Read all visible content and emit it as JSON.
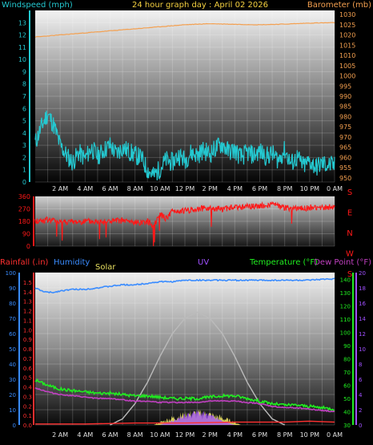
{
  "title": "24 hour graph day : April 02 2026",
  "colors": {
    "wind": "#24c8d0",
    "barometer": "#f4a050",
    "direction": "#ff1818",
    "rain": "#ff3030",
    "humidity": "#3a8cff",
    "solar": "#e8e060",
    "uv": "#a050ff",
    "temperature": "#20ee20",
    "dewpoint": "#c040c0",
    "solar_curve": "#bbbbbb"
  },
  "time_labels": [
    "2 AM",
    "4 AM",
    "6 AM",
    "8 AM",
    "10 AM",
    "12 PM",
    "2 PM",
    "4 PM",
    "6 PM",
    "8 PM",
    "10 PM",
    "0 AM"
  ],
  "chart_data": [
    {
      "type": "line",
      "x_range_hours": [
        0,
        24
      ],
      "left_axis": {
        "label": "Windspeed (mph)",
        "ticks": [
          0,
          1,
          2,
          3,
          4,
          5,
          6,
          7,
          8,
          9,
          10,
          11,
          12,
          13
        ],
        "range": [
          0,
          14
        ]
      },
      "right_axis": {
        "label": "Barometer (mb)",
        "ticks": [
          950,
          955,
          960,
          965,
          970,
          975,
          980,
          985,
          990,
          995,
          1000,
          1005,
          1010,
          1015,
          1020,
          1025,
          1030
        ],
        "range": [
          948,
          1032
        ]
      },
      "series": [
        {
          "name": "Windspeed (mph)",
          "axis": "left",
          "x": [
            0,
            0.5,
            1,
            1.5,
            2,
            2.5,
            3,
            3.5,
            4,
            4.5,
            5,
            5.5,
            6,
            6.5,
            7,
            7.5,
            8,
            8.5,
            9,
            9.5,
            10,
            10.5,
            11,
            11.5,
            12,
            12.5,
            13,
            13.5,
            14,
            14.5,
            15,
            15.5,
            16,
            16.5,
            17,
            17.5,
            18,
            18.5,
            19,
            19.5,
            20,
            20.5,
            21,
            21.5,
            22,
            22.5,
            23,
            23.5,
            24
          ],
          "y": [
            3.2,
            4.5,
            5.6,
            4.6,
            3.0,
            2.2,
            1.6,
            2.4,
            1.9,
            2.8,
            2.1,
            2.6,
            3.0,
            2.3,
            2.8,
            2.5,
            2.2,
            2.0,
            1.0,
            0.5,
            1.1,
            1.8,
            1.6,
            2.2,
            1.8,
            2.4,
            2.2,
            2.6,
            2.3,
            2.8,
            3.1,
            2.5,
            2.6,
            2.0,
            2.4,
            2.2,
            2.5,
            2.1,
            2.3,
            1.8,
            2.6,
            1.5,
            2.0,
            1.3,
            1.7,
            1.2,
            1.5,
            1.4,
            1.3
          ]
        },
        {
          "name": "Barometer (mb)",
          "axis": "right",
          "x": [
            0,
            2,
            4,
            6,
            8,
            10,
            12,
            14,
            16,
            18,
            20,
            22,
            24
          ],
          "y": [
            1019,
            1020,
            1021,
            1022,
            1023,
            1024,
            1025,
            1025.5,
            1025.2,
            1025,
            1025.3,
            1025.8,
            1026
          ]
        }
      ]
    },
    {
      "type": "scatter",
      "x_range_hours": [
        0,
        24
      ],
      "left_axis": {
        "ticks": [
          0,
          90,
          180,
          270,
          360
        ],
        "range": [
          0,
          360
        ]
      },
      "right_labels": [
        "S",
        "E",
        "N",
        "W",
        "S"
      ],
      "series": [
        {
          "name": "Wind direction",
          "x": [
            0,
            1,
            2,
            3,
            4,
            5,
            6,
            7,
            8,
            9,
            9.5,
            10,
            10.5,
            11,
            12,
            13,
            14,
            15,
            16,
            17,
            18,
            19,
            20,
            21,
            22,
            23,
            24
          ],
          "y": [
            180,
            190,
            180,
            175,
            180,
            175,
            180,
            185,
            170,
            180,
            150,
            230,
            200,
            250,
            255,
            270,
            275,
            270,
            280,
            285,
            290,
            300,
            280,
            270,
            280,
            275,
            285
          ]
        }
      ]
    },
    {
      "type": "line",
      "x_range_hours": [
        0,
        24
      ],
      "left_axis": {
        "label": "Humidity",
        "ticks": [
          0,
          10,
          20,
          30,
          40,
          50,
          60,
          70,
          80,
          90,
          100
        ],
        "range": [
          0,
          100
        ]
      },
      "rain_axis": {
        "label": "Rainfall (.in)",
        "ticks": [
          0,
          0.1,
          0.2,
          0.3,
          0.4,
          0.5,
          0.6,
          0.7,
          0.8,
          0.9,
          1,
          1.1,
          1.2,
          1.3,
          1.4,
          1.5
        ],
        "range": [
          0,
          1.6
        ]
      },
      "temp_axis": {
        "label": "Temperature (°F)",
        "ticks": [
          30,
          40,
          50,
          60,
          70,
          80,
          90,
          100,
          110,
          120,
          130,
          140
        ],
        "range": [
          30,
          145
        ]
      },
      "uv_axis": {
        "label": "UV",
        "ticks": [
          0,
          2,
          4,
          6,
          8,
          10,
          12,
          14,
          16,
          18,
          20
        ],
        "range": [
          0,
          20
        ]
      },
      "solar_label": "Solar",
      "dewpoint_label": "Dew Point (°F)",
      "series": [
        {
          "name": "Humidity",
          "x": [
            0,
            0.5,
            1,
            1.5,
            2,
            3,
            4,
            5,
            6,
            7,
            8,
            9,
            10,
            11,
            12,
            13,
            14,
            16,
            18,
            20,
            22,
            24
          ],
          "y": [
            90,
            88,
            87,
            87,
            88,
            89,
            89,
            90,
            91,
            92,
            92,
            93,
            94,
            94,
            95,
            95,
            95,
            95,
            95,
            95,
            95,
            96
          ]
        },
        {
          "name": "Temperature (°F)",
          "x": [
            0,
            1,
            2,
            3,
            4,
            5,
            6,
            7,
            8,
            9,
            10,
            11,
            12,
            13,
            14,
            15,
            16,
            17,
            18,
            19,
            20,
            21,
            22,
            23,
            24
          ],
          "y": [
            64,
            60,
            57,
            56,
            55,
            54,
            54,
            53,
            52,
            52,
            51,
            50,
            50,
            50,
            51,
            52,
            52,
            50,
            48,
            46,
            45,
            45,
            44,
            43,
            42
          ]
        },
        {
          "name": "Dew Point (°F)",
          "x": [
            0,
            1,
            2,
            3,
            4,
            5,
            6,
            7,
            8,
            9,
            10,
            11,
            12,
            13,
            14,
            15,
            16,
            17,
            18,
            19,
            20,
            21,
            22,
            23,
            24
          ],
          "y": [
            58,
            55,
            53,
            52,
            51,
            50,
            50,
            49,
            48,
            48,
            47,
            47,
            47,
            47,
            48,
            48,
            48,
            47,
            46,
            44,
            43,
            43,
            42,
            41,
            40
          ]
        },
        {
          "name": "Solar",
          "x": [
            6,
            7,
            8,
            9,
            10,
            11,
            12,
            13,
            14,
            15,
            16,
            17,
            18,
            19,
            20
          ],
          "y": [
            0,
            4,
            14,
            28,
            45,
            60,
            70,
            74,
            70,
            60,
            45,
            28,
            14,
            4,
            0
          ]
        },
        {
          "name": "UV",
          "x": [
            10,
            11,
            12,
            13,
            14,
            15,
            16
          ],
          "y": [
            0,
            0.5,
            1.2,
            1.6,
            1.2,
            0.5,
            0
          ]
        },
        {
          "name": "Rainfall (.in)",
          "x": [
            0,
            4,
            8,
            12,
            16,
            20,
            22,
            24
          ],
          "y": [
            0.01,
            0.01,
            0.02,
            0.02,
            0.03,
            0.03,
            0.04,
            0.03
          ]
        }
      ]
    }
  ]
}
